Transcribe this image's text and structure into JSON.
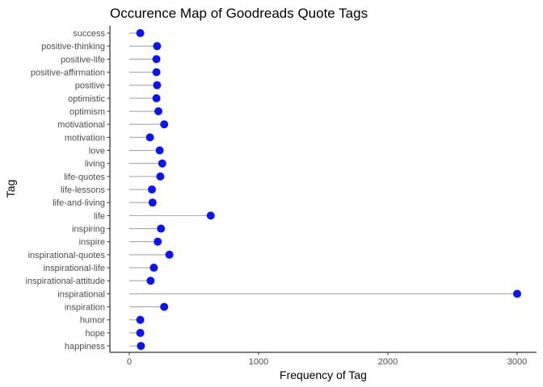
{
  "chart_data": {
    "type": "lollipop",
    "title": "Occurence Map of Goodreads Quote Tags",
    "xlabel": "Frequency of Tag",
    "ylabel": "Tag",
    "xlim": [
      -150,
      3150
    ],
    "x_ticks": [
      0,
      1000,
      2000,
      3000
    ],
    "grid": false,
    "categories": [
      "success",
      "positive-thinking",
      "positive-life",
      "positive-affirmation",
      "positive",
      "optimistic",
      "optimism",
      "motivational",
      "motivation",
      "love",
      "living",
      "life-quotes",
      "life-lessons",
      "life-and-living",
      "life",
      "inspiring",
      "inspire",
      "inspirational-quotes",
      "inspirational-life",
      "inspirational-attitude",
      "inspirational",
      "inspiration",
      "humor",
      "hope",
      "happiness"
    ],
    "values": [
      85,
      215,
      210,
      210,
      215,
      210,
      225,
      270,
      160,
      235,
      255,
      240,
      175,
      180,
      630,
      245,
      220,
      310,
      190,
      165,
      3000,
      270,
      85,
      85,
      90
    ],
    "point_color": "#0a14f5",
    "stem_color": "#a6a6a6"
  }
}
